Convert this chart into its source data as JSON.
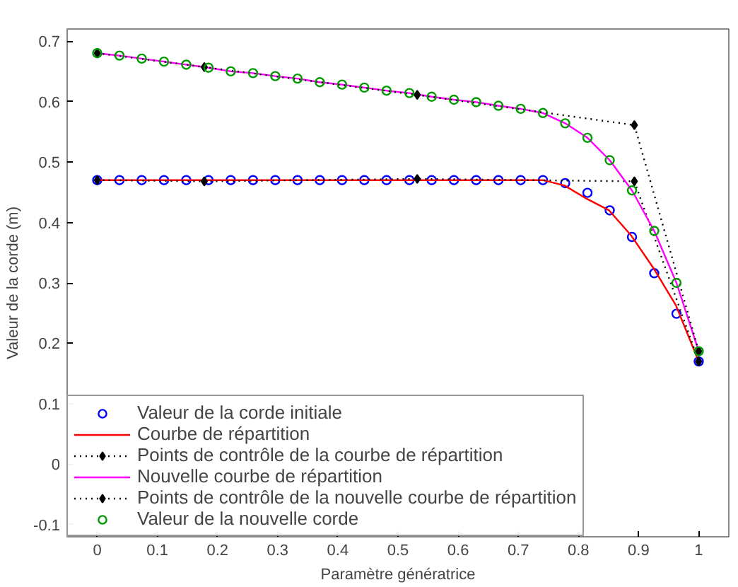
{
  "chart_data": {
    "type": "scatter",
    "xlabel": "Paramètre génératrice",
    "ylabel": "Valeur de la corde (m)",
    "xlim": [
      -0.05,
      1.05
    ],
    "ylim": [
      -0.12,
      0.72
    ],
    "xticks": [
      0,
      0.1,
      0.2,
      0.3,
      0.4,
      0.5,
      0.6,
      0.7,
      0.8,
      0.9,
      1
    ],
    "yticks": [
      -0.1,
      0,
      0.1,
      0.2,
      0.3,
      0.4,
      0.5,
      0.6,
      0.7
    ],
    "grid": false,
    "legend": "bottom left",
    "series": [
      {
        "name": "Valeur de la corde initiale",
        "marker": "circle",
        "color": "#0000ff",
        "x": [
          0,
          0.037,
          0.074,
          0.111,
          0.148,
          0.185,
          0.222,
          0.259,
          0.296,
          0.333,
          0.37,
          0.407,
          0.444,
          0.481,
          0.519,
          0.556,
          0.593,
          0.63,
          0.667,
          0.704,
          0.741,
          0.778,
          0.815,
          0.852,
          0.889,
          0.926,
          0.963,
          1
        ],
        "values": [
          0.47,
          0.47,
          0.47,
          0.47,
          0.47,
          0.47,
          0.47,
          0.47,
          0.47,
          0.47,
          0.47,
          0.47,
          0.47,
          0.47,
          0.47,
          0.47,
          0.47,
          0.47,
          0.47,
          0.47,
          0.47,
          0.465,
          0.449,
          0.42,
          0.376,
          0.316,
          0.249,
          0.17
        ]
      },
      {
        "name": "Courbe de répartition",
        "type": "line",
        "marker": "none",
        "line_style": "solid",
        "color": "#ff0000",
        "x": [
          0,
          0.741,
          0.777,
          0.814,
          0.851,
          0.888,
          0.925,
          0.962,
          1
        ],
        "values": [
          0.47,
          0.47,
          0.461,
          0.439,
          0.42,
          0.378,
          0.324,
          0.263,
          0.17
        ]
      },
      {
        "name": "Points de contrôle de la courbe de répartition",
        "type": "line",
        "marker": "diamond",
        "line_style": "dotted",
        "color": "#000000",
        "x": [
          0,
          0.178,
          0.532,
          0.893,
          1
        ],
        "values": [
          0.47,
          0.468,
          0.472,
          0.468,
          0.17
        ]
      },
      {
        "name": "Nouvelle courbe de répartition",
        "type": "line",
        "marker": "none",
        "line_style": "solid",
        "color": "#ff00ff",
        "x": [
          0,
          0.037,
          0.074,
          0.111,
          0.148,
          0.185,
          0.222,
          0.259,
          0.296,
          0.333,
          0.37,
          0.407,
          0.444,
          0.481,
          0.519,
          0.556,
          0.593,
          0.63,
          0.667,
          0.704,
          0.741,
          0.778,
          0.815,
          0.852,
          0.889,
          0.926,
          0.963,
          1
        ],
        "values": [
          0.68,
          0.676,
          0.671,
          0.666,
          0.661,
          0.656,
          0.65,
          0.647,
          0.642,
          0.638,
          0.632,
          0.628,
          0.623,
          0.618,
          0.614,
          0.608,
          0.603,
          0.599,
          0.593,
          0.588,
          0.581,
          0.564,
          0.54,
          0.503,
          0.453,
          0.386,
          0.3,
          0.187
        ]
      },
      {
        "name": "Points de contrôle de la nouvelle courbe de répartition",
        "type": "line",
        "marker": "diamond",
        "line_style": "dotted",
        "color": "#000000",
        "x": [
          0,
          0.178,
          0.532,
          0.893,
          1
        ],
        "values": [
          0.68,
          0.657,
          0.611,
          0.561,
          0.187
        ]
      },
      {
        "name": "Valeur de la nouvelle corde",
        "marker": "circle",
        "color": "#009900",
        "x": [
          0,
          0.037,
          0.074,
          0.111,
          0.148,
          0.185,
          0.222,
          0.259,
          0.296,
          0.333,
          0.37,
          0.407,
          0.444,
          0.481,
          0.519,
          0.556,
          0.593,
          0.63,
          0.667,
          0.704,
          0.741,
          0.778,
          0.815,
          0.852,
          0.889,
          0.926,
          0.963,
          1
        ],
        "values": [
          0.68,
          0.676,
          0.671,
          0.666,
          0.661,
          0.656,
          0.65,
          0.647,
          0.642,
          0.638,
          0.632,
          0.628,
          0.623,
          0.618,
          0.614,
          0.608,
          0.603,
          0.599,
          0.593,
          0.588,
          0.581,
          0.564,
          0.54,
          0.503,
          0.453,
          0.386,
          0.3,
          0.187
        ]
      }
    ]
  }
}
